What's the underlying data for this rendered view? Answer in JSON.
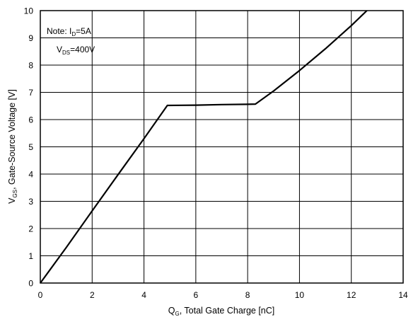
{
  "chart_data": {
    "type": "line",
    "xlabel": {
      "main": "Q",
      "sub": "G",
      "rest": ", Total Gate Charge [nC]"
    },
    "ylabel": {
      "main": "V",
      "sub": "GS",
      "rest": ", Gate-Source Voltage [V]"
    },
    "xlim": [
      0,
      14
    ],
    "ylim": [
      0,
      10
    ],
    "xticks": [
      "0",
      "2",
      "4",
      "6",
      "8",
      "10",
      "12",
      "14"
    ],
    "yticks": [
      "0",
      "1",
      "2",
      "3",
      "4",
      "5",
      "6",
      "7",
      "8",
      "9",
      "10"
    ],
    "grid": true,
    "annotations": {
      "line1": {
        "prefix": "Note: I",
        "sub": "D",
        "suffix": "=5A"
      },
      "line2": {
        "prefix": "V",
        "sub": "DS",
        "suffix": "=400V"
      }
    },
    "series": [
      {
        "x": [
          0,
          1,
          2,
          3,
          4,
          4.9,
          6,
          7,
          8,
          8.3,
          9,
          10,
          11,
          12,
          12.6
        ],
        "y": [
          0,
          1.3,
          2.65,
          3.98,
          5.3,
          6.52,
          6.53,
          6.55,
          6.56,
          6.57,
          7.05,
          7.8,
          8.6,
          9.45,
          10
        ]
      }
    ]
  }
}
